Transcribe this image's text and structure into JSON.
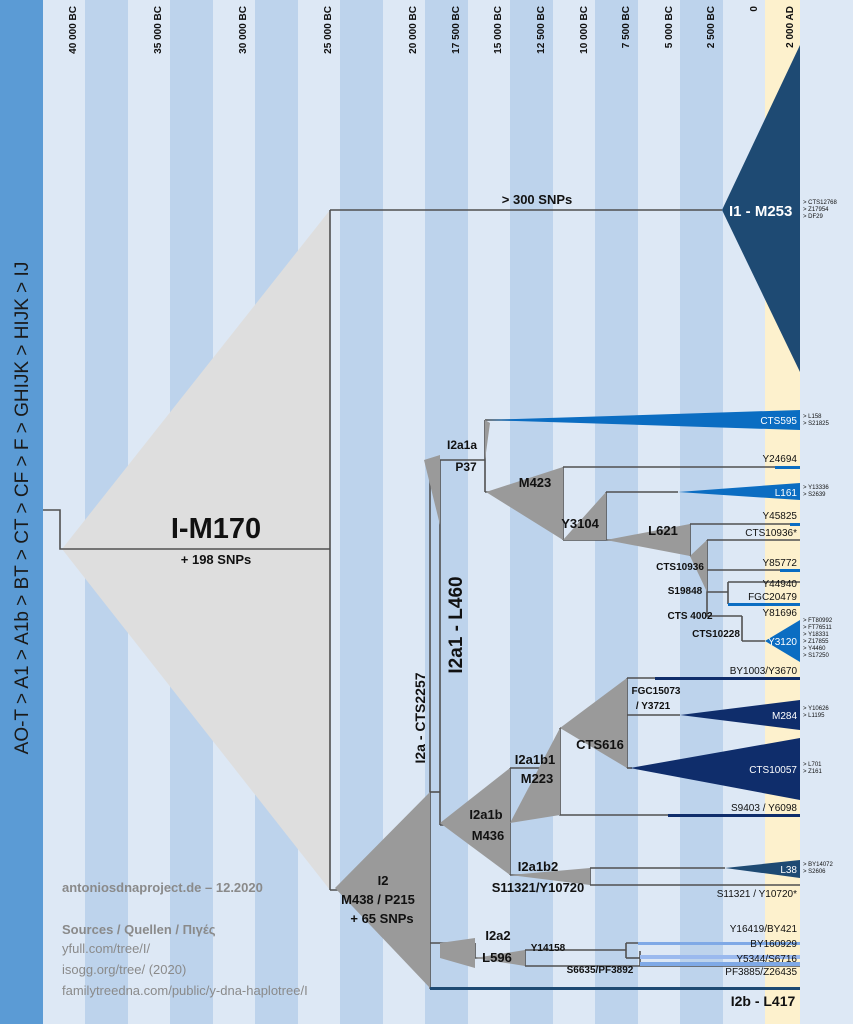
{
  "sidebar": {
    "lineage": "AO-T > A1 > A1b > BT > CT > CF > F > GHIJK > HIJK > IJ"
  },
  "timeline": {
    "labels": [
      "40 000 BC",
      "35 000 BC",
      "30 000 BC",
      "25 000 BC",
      "20 000 BC",
      "17 500 BC",
      "15 000 BC",
      "12 500 BC",
      "10 000 BC",
      "7 500 BC",
      "5 000 BC",
      "2 500 BC",
      "0",
      "2 000 AD"
    ]
  },
  "root": {
    "name": "I-M170",
    "snps": "+ 198 SNPs"
  },
  "i1": {
    "label": "I1 - M253",
    "branch_note": "> 300 SNPs",
    "subclades": "> CTS12768\n> Z17954\n> DF29"
  },
  "i2": {
    "line1": "I2",
    "line2": "M438 / P215",
    "line3": "+ 65 SNPs"
  },
  "i2a": {
    "label": "I2a - CTS2257"
  },
  "i2a1": {
    "label": "I2a1 - L460"
  },
  "i2a1a": {
    "line1": "I2a1a",
    "line2": "P37"
  },
  "m423": "M423",
  "y3104": "Y3104",
  "l621": "L621",
  "cts10936": "CTS10936",
  "s19848": "S19848",
  "cts4002": "CTS 4002",
  "cts10228": "CTS10228",
  "i2a1b": {
    "line1": "I2a1b",
    "line2": "M436"
  },
  "i2a1b1": {
    "line1": "I2a1b1",
    "line2": "M223"
  },
  "cts616": "CTS616",
  "fgc15073": {
    "line1": "FGC15073",
    "line2": "/ Y3721"
  },
  "i2a1b2": {
    "line1": "I2a1b2",
    "line2": "S11321/Y10720"
  },
  "i2a2": {
    "line1": "I2a2",
    "line2": "L596"
  },
  "y14158": "Y14158",
  "s6635": "S6635/PF3892",
  "i2b": "I2b - L417",
  "leaves": {
    "cts595": "CTS595",
    "cts595_sub": "> L158\n> S21825",
    "y24694": "Y24694",
    "l161": "L161",
    "l161_sub": "> Y13336\n> S2639",
    "y45825": "Y45825",
    "cts10936s": "CTS10936*",
    "y85772": "Y85772",
    "y44940": "Y44940",
    "fgc20479": "FGC20479",
    "y81696": "Y81696",
    "y3120": "Y3120",
    "y3120_sub": "> FT80992\n> FT76511\n> Y18331\n> Z17855\n> Y4460\n> S17250",
    "by1003": "BY1003/Y3670",
    "m284": "M284",
    "m284_sub": "> Y10626\n> L1195",
    "cts10057": "CTS10057",
    "cts10057_sub": "> L701\n> Z161",
    "s9403": "S9403 / Y6098",
    "l38": "L38",
    "l38_sub": "> BY14072\n> S2606",
    "s11321s": "S11321 / Y10720*",
    "y16419": "Y16419/BY421",
    "by160929": "BY160929",
    "y5344": "Y5344/S6716",
    "pf3885": "PF3885/Z26435"
  },
  "credits": {
    "author": "antoniosdnaproject.de – 12.2020",
    "sources_title": "Sources / Quellen / Πιγές",
    "source1": "yfull.com/tree/I/",
    "source2": "isogg.org/tree/  (2020)",
    "source3": "familytreedna.com/public/y-dna-haplotree/I"
  },
  "colors": {
    "sidebar": "#5b9bd5",
    "band_light": "#dde8f5",
    "band_dark": "#bdd3ec",
    "recent_band": "#fdf1cd",
    "gray_triangle": "#999999",
    "gray_big": "#dedede",
    "navy": "#1e4a73",
    "dark_navy": "#0f2d6b",
    "blue": "#0b6dc2"
  }
}
